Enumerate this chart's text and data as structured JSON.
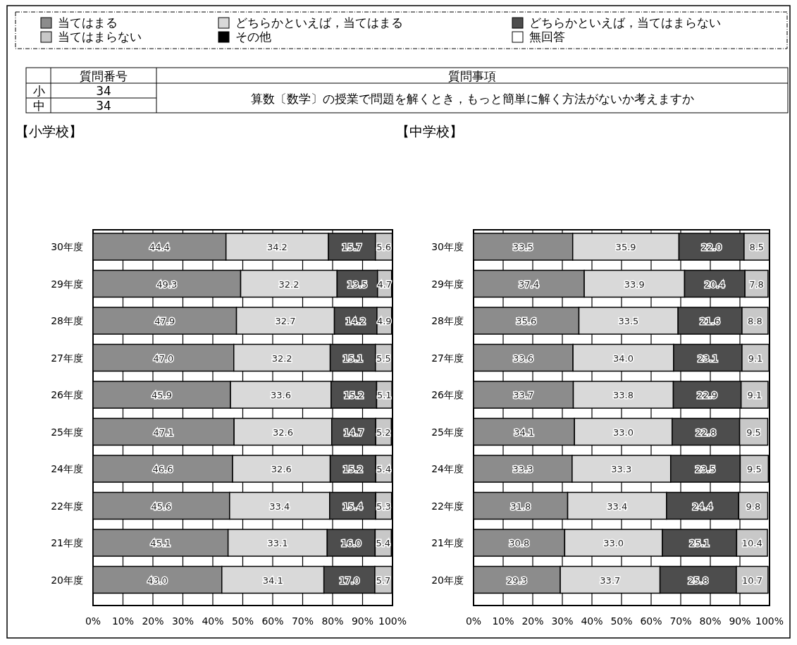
{
  "chart_data": [
    {
      "type": "bar",
      "orientation": "horizontal",
      "stacked": true,
      "title": "【小学校】",
      "legend": "top",
      "grid": "x",
      "annotations": [
        "質問番号",
        "質問事項",
        "小",
        "34",
        "中",
        "34",
        "算数〔数学〕の授業で問題を解くとき，もっと簡単に解く方法がないか考えますか"
      ],
      "categories": [
        "30年度",
        "29年度",
        "28年度",
        "27年度",
        "26年度",
        "25年度",
        "24年度",
        "22年度",
        "21年度",
        "20年度"
      ],
      "xlim": [
        0,
        100
      ],
      "xticks": [
        {
          "value": 0,
          "label": "0%"
        },
        {
          "value": 10,
          "label": "10%"
        },
        {
          "value": 20,
          "label": "20%"
        },
        {
          "value": 30,
          "label": "30%"
        },
        {
          "value": 40,
          "label": "40%"
        },
        {
          "value": 50,
          "label": "50%"
        },
        {
          "value": 60,
          "label": "60%"
        },
        {
          "value": 70,
          "label": "70%"
        },
        {
          "value": 80,
          "label": "80%"
        },
        {
          "value": 90,
          "label": "90%"
        },
        {
          "value": 100,
          "label": "100%"
        }
      ],
      "series": [
        {
          "name": "当てはまる",
          "color": "#8c8c8c",
          "values": [
            44.4,
            49.3,
            47.9,
            47.0,
            45.9,
            47.1,
            46.6,
            45.6,
            45.1,
            43.0
          ],
          "value_labels": [
            "44.4",
            "49.3",
            "47.9",
            "47.0",
            "45.9",
            "47.1",
            "46.6",
            "45.6",
            "45.1",
            "43.0"
          ]
        },
        {
          "name": "どちらかといえば，当てはまる",
          "color": "#d9d9d9",
          "values": [
            34.2,
            32.2,
            32.7,
            32.2,
            33.6,
            32.6,
            32.6,
            33.4,
            33.1,
            34.1
          ],
          "value_labels": [
            "34.2",
            "32.2",
            "32.7",
            "32.2",
            "33.6",
            "32.6",
            "32.6",
            "33.4",
            "33.1",
            "34.1"
          ]
        },
        {
          "name": "どちらかといえば，当てはまらない",
          "color": "#4d4d4d",
          "values": [
            15.7,
            13.5,
            14.2,
            15.1,
            15.2,
            14.7,
            15.2,
            15.4,
            16.0,
            17.0
          ],
          "value_labels": [
            "15.7",
            "13.5",
            "14.2",
            "15.1",
            "15.2",
            "14.7",
            "15.2",
            "15.4",
            "16.0",
            "17.0"
          ]
        },
        {
          "name": "当てはまらない",
          "color": "#c8c8c8",
          "values": [
            5.6,
            4.7,
            4.9,
            5.5,
            5.1,
            5.2,
            5.4,
            5.3,
            5.4,
            5.7
          ],
          "value_labels": [
            "5.6",
            "4.7",
            "4.9",
            "5.5",
            "5.1",
            "5.2",
            "5.4",
            "5.3",
            "5.4",
            "5.7"
          ]
        },
        {
          "name": "その他",
          "color": "#000000",
          "values": [
            null,
            null,
            null,
            null,
            null,
            null,
            null,
            null,
            null,
            null
          ]
        },
        {
          "name": "無回答",
          "color": "#ffffff",
          "values": [
            null,
            null,
            null,
            null,
            null,
            null,
            null,
            null,
            null,
            null
          ]
        }
      ]
    },
    {
      "type": "bar",
      "orientation": "horizontal",
      "stacked": true,
      "title": "【中学校】",
      "grid": "x",
      "categories": [
        "30年度",
        "29年度",
        "28年度",
        "27年度",
        "26年度",
        "25年度",
        "24年度",
        "22年度",
        "21年度",
        "20年度"
      ],
      "xlim": [
        0,
        100
      ],
      "xticks": [
        {
          "value": 0,
          "label": "0%"
        },
        {
          "value": 10,
          "label": "10%"
        },
        {
          "value": 20,
          "label": "20%"
        },
        {
          "value": 30,
          "label": "30%"
        },
        {
          "value": 40,
          "label": "40%"
        },
        {
          "value": 50,
          "label": "50%"
        },
        {
          "value": 60,
          "label": "60%"
        },
        {
          "value": 70,
          "label": "70%"
        },
        {
          "value": 80,
          "label": "80%"
        },
        {
          "value": 90,
          "label": "90%"
        },
        {
          "value": 100,
          "label": "100%"
        }
      ],
      "series": [
        {
          "color": "#8c8c8c",
          "values": [
            33.5,
            37.4,
            35.6,
            33.6,
            33.7,
            34.1,
            33.3,
            31.8,
            30.8,
            29.3
          ],
          "value_labels": [
            "33.5",
            "37.4",
            "35.6",
            "33.6",
            "33.7",
            "34.1",
            "33.3",
            "31.8",
            "30.8",
            "29.3"
          ]
        },
        {
          "color": "#d9d9d9",
          "values": [
            35.9,
            33.9,
            33.5,
            34.0,
            33.8,
            33.0,
            33.3,
            33.4,
            33.0,
            33.7
          ],
          "value_labels": [
            "35.9",
            "33.9",
            "33.5",
            "34.0",
            "33.8",
            "33.0",
            "33.3",
            "33.4",
            "33.0",
            "33.7"
          ]
        },
        {
          "color": "#4d4d4d",
          "values": [
            22.0,
            20.4,
            21.6,
            23.1,
            22.9,
            22.8,
            23.5,
            24.4,
            25.1,
            25.8
          ],
          "value_labels": [
            "22.0",
            "20.4",
            "21.6",
            "23.1",
            "22.9",
            "22.8",
            "23.5",
            "24.4",
            "25.1",
            "25.8"
          ]
        },
        {
          "color": "#c8c8c8",
          "values": [
            8.5,
            7.8,
            8.8,
            9.1,
            9.1,
            9.5,
            9.5,
            9.8,
            10.4,
            10.7
          ],
          "value_labels": [
            "8.5",
            "7.8",
            "8.8",
            "9.1",
            "9.1",
            "9.5",
            "9.5",
            "9.8",
            "10.4",
            "10.7"
          ]
        },
        {
          "color": "#000000",
          "values": [
            null,
            null,
            null,
            null,
            null,
            null,
            null,
            null,
            null,
            null
          ]
        },
        {
          "color": "#ffffff",
          "values": [
            null,
            null,
            null,
            null,
            null,
            null,
            null,
            null,
            null,
            null
          ]
        }
      ]
    }
  ]
}
